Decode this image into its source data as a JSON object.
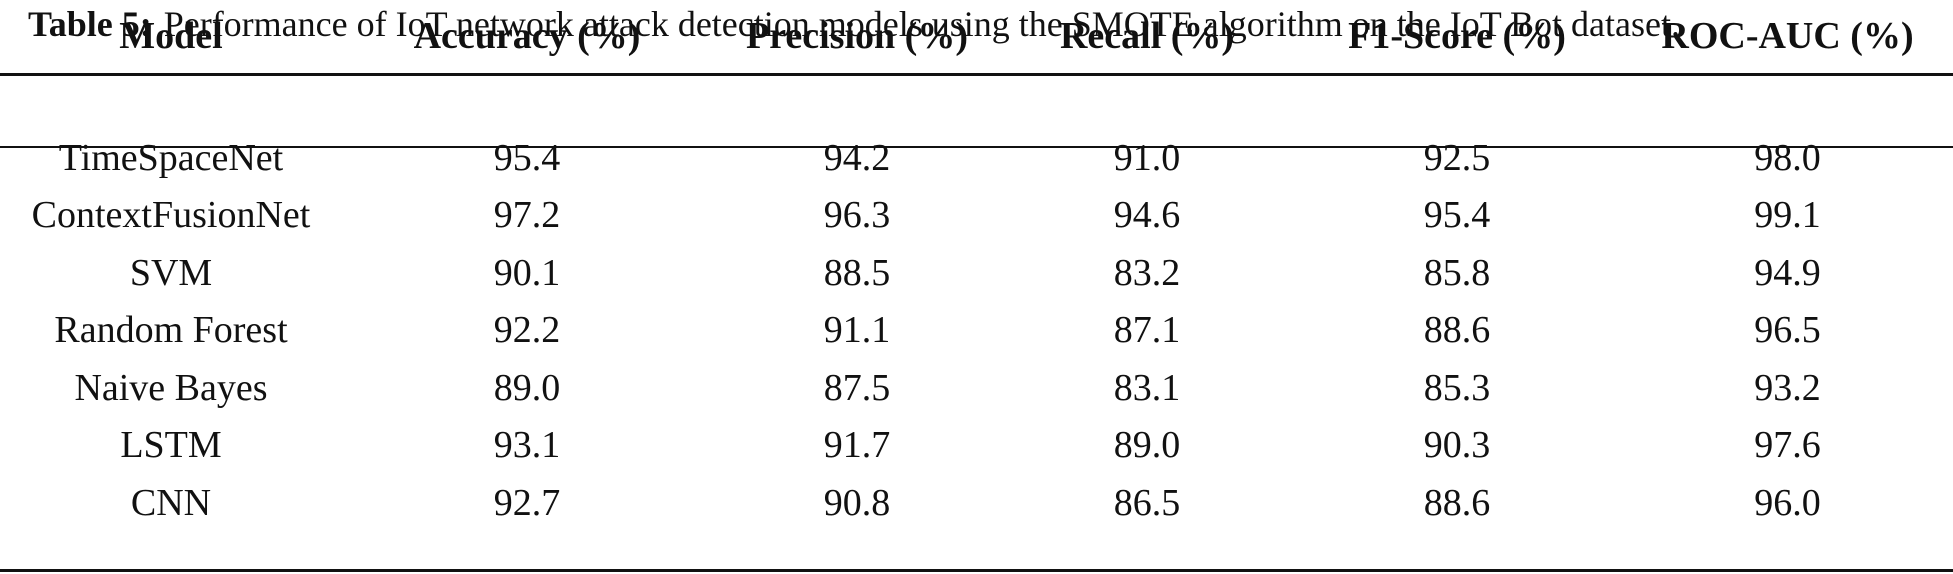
{
  "caption": {
    "label": "Table 5:",
    "text": "Performance of IoT network attack detection models using the SMOTE algorithm on the IoT Bot dataset."
  },
  "table": {
    "headers": [
      "Model",
      "Accuracy (%)",
      "Precision (%)",
      "Recall (%)",
      "F1-Score (%)",
      "ROC-AUC (%)"
    ],
    "rows": [
      [
        "TimeSpaceNet",
        "95.4",
        "94.2",
        "91.0",
        "92.5",
        "98.0"
      ],
      [
        "ContextFusionNet",
        "97.2",
        "96.3",
        "94.6",
        "95.4",
        "99.1"
      ],
      [
        "SVM",
        "90.1",
        "88.5",
        "83.2",
        "85.8",
        "94.9"
      ],
      [
        "Random Forest",
        "92.2",
        "91.1",
        "87.1",
        "88.6",
        "96.5"
      ],
      [
        "Naive Bayes",
        "89.0",
        "87.5",
        "83.1",
        "85.3",
        "93.2"
      ],
      [
        "LSTM",
        "93.1",
        "91.7",
        "89.0",
        "90.3",
        "97.6"
      ],
      [
        "CNN",
        "92.7",
        "90.8",
        "86.5",
        "88.6",
        "96.0"
      ]
    ]
  }
}
